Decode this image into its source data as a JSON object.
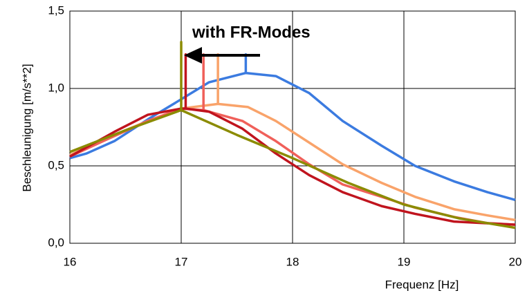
{
  "chart_data": {
    "type": "line",
    "annotation": "with FR-Modes",
    "xlabel": "Frequenz [Hz]",
    "ylabel": "Beschleunigung [m/s**2]",
    "xlim": [
      16,
      20
    ],
    "xticks": [
      16,
      17,
      18,
      19,
      20
    ],
    "ylim": [
      0,
      1.5
    ],
    "yticks": [
      {
        "value": 0,
        "label": "0,0"
      },
      {
        "value": 0.5,
        "label": "0,5"
      },
      {
        "value": 1.0,
        "label": "1,0"
      },
      {
        "value": 1.5,
        "label": "1,5"
      }
    ],
    "grid": true,
    "series": [
      {
        "color": "#3b7be0",
        "x": [
          16,
          16.15,
          16.4,
          16.7,
          17.0,
          17.25,
          17.58,
          17.58,
          17.58,
          17.85,
          18.15,
          18.45,
          18.8,
          19.1,
          19.45,
          19.75,
          20
        ],
        "values": [
          0.55,
          0.58,
          0.66,
          0.8,
          0.93,
          1.04,
          1.1,
          1.22,
          1.1,
          1.08,
          0.97,
          0.79,
          0.63,
          0.5,
          0.4,
          0.33,
          0.28
        ]
      },
      {
        "color": "#f9a36a",
        "x": [
          16,
          16.3,
          16.7,
          17.0,
          17.33,
          17.33,
          17.33,
          17.6,
          17.85,
          18.15,
          18.45,
          18.8,
          19.1,
          19.45,
          19.75,
          20
        ],
        "values": [
          0.57,
          0.67,
          0.79,
          0.87,
          0.9,
          1.22,
          0.9,
          0.88,
          0.79,
          0.65,
          0.51,
          0.39,
          0.3,
          0.22,
          0.18,
          0.15
        ]
      },
      {
        "color": "#f0605a",
        "x": [
          16,
          16.3,
          16.7,
          17.0,
          17.2,
          17.2,
          17.2,
          17.55,
          17.85,
          18.15,
          18.45,
          18.8,
          19.1,
          19.45,
          19.75,
          20
        ],
        "values": [
          0.56,
          0.66,
          0.79,
          0.87,
          0.86,
          1.22,
          0.86,
          0.79,
          0.66,
          0.51,
          0.38,
          0.3,
          0.23,
          0.17,
          0.13,
          0.12
        ]
      },
      {
        "color": "#c0141e",
        "x": [
          16,
          16.4,
          16.7,
          17.0,
          17.04,
          17.04,
          17.04,
          17.25,
          17.55,
          17.85,
          18.15,
          18.45,
          18.8,
          19.1,
          19.45,
          20
        ],
        "values": [
          0.56,
          0.72,
          0.83,
          0.87,
          0.87,
          1.22,
          0.87,
          0.85,
          0.74,
          0.58,
          0.44,
          0.33,
          0.24,
          0.19,
          0.14,
          0.12
        ]
      },
      {
        "color": "#8b8b00",
        "x": [
          16,
          16.5,
          17.0,
          17.0,
          17.0,
          17.5,
          18,
          18.5,
          19,
          19.5,
          20
        ],
        "values": [
          0.59,
          0.73,
          0.86,
          1.3,
          0.86,
          0.7,
          0.55,
          0.39,
          0.25,
          0.16,
          0.1
        ]
      }
    ]
  }
}
